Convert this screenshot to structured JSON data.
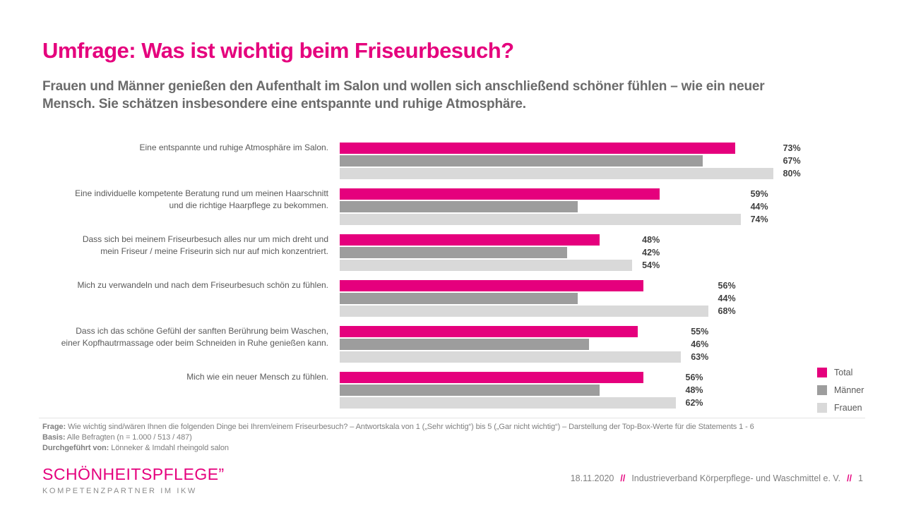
{
  "slide": {
    "title": "Umfrage: Was ist wichtig beim Friseurbesuch?",
    "subtitle": "Frauen und Männer genießen den Aufenthalt im Salon und wollen sich anschließend schöner fühlen – wie ein neuer\nMensch. Sie schätzen insbesondere eine entspannte und ruhige Atmosphäre."
  },
  "chart_data": {
    "type": "bar",
    "orientation": "horizontal",
    "title": "",
    "xlabel": "",
    "ylabel": "",
    "xlim": [
      0,
      100
    ],
    "grid": false,
    "axes_hidden": true,
    "value_suffix": "%",
    "legend_position": "bottom-right",
    "categories": [
      "Eine entspannte und ruhige Atmosphäre im Salon.",
      "Eine individuelle kompetente Beratung rund um meinen Haarschnitt\nund die richtige Haarpflege zu bekommen.",
      "Dass sich bei meinem Friseurbesuch alles nur um mich dreht und\nmein Friseur / meine Friseurin sich nur auf mich konzentriert.",
      "Mich zu verwandeln und nach dem Friseurbesuch schön zu fühlen.",
      "Dass ich das schöne Gefühl der sanften Berührung beim Waschen,\neiner Kopfhautrmassage oder beim Schneiden in Ruhe genießen kann.",
      "Mich wie ein neuer Mensch zu fühlen."
    ],
    "series": [
      {
        "key": "total",
        "name": "Total",
        "color": "#E5007D",
        "values": [
          73,
          59,
          48,
          56,
          55,
          56
        ]
      },
      {
        "key": "maenner",
        "name": "Männer",
        "color": "#9D9D9D",
        "values": [
          67,
          44,
          42,
          44,
          46,
          48
        ]
      },
      {
        "key": "frauen",
        "name": "Frauen",
        "color": "#D9D9D9",
        "values": [
          80,
          74,
          54,
          68,
          63,
          62
        ]
      }
    ]
  },
  "footnotes": [
    {
      "label": "Frage:",
      "text": " Wie wichtig sind/wären Ihnen die folgenden Dinge bei Ihrem/einem Friseurbesuch? – Antwortskala von 1 („Sehr wichtig“) bis 5 („Gar nicht wichtig“) – Darstellung der Top-Box-Werte für die Statements 1 - 6"
    },
    {
      "label": "Basis:",
      "text": " Alle Befragten (n = 1.000 / 513 / 487)"
    },
    {
      "label": "Durchgeführt von:",
      "text": " Lönneker & Imdahl rheingold salon"
    }
  ],
  "logo": {
    "wordmark": "SCHÖNHEITSPFLEGE",
    "mark": "”",
    "tagline": "KOMPETENZPARTNER IM IKW"
  },
  "footer": {
    "date": "18.11.2020",
    "separator": "//",
    "organization": "Industrieverband Körperpflege- und Waschmittel e. V.",
    "page": "1"
  },
  "colors": {
    "accent_magenta": "#E5007D",
    "series_maenner_gray": "#9D9D9D",
    "series_frauen_gray": "#D9D9D9",
    "subtitle_gray": "#6b6b6b",
    "footnote_gray": "#7f7f7f"
  }
}
